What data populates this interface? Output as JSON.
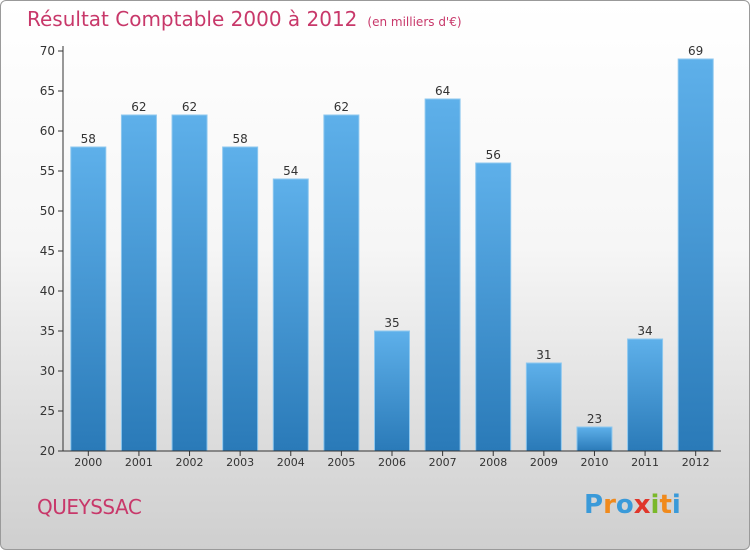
{
  "chart_data": {
    "type": "bar",
    "title": "Résultat Comptable 2000 à 2012",
    "subtitle": "(en milliers d'€)",
    "categories": [
      "2000",
      "2001",
      "2002",
      "2003",
      "2004",
      "2005",
      "2006",
      "2007",
      "2008",
      "2009",
      "2010",
      "2011",
      "2012"
    ],
    "values": [
      58,
      62,
      62,
      58,
      54,
      62,
      35,
      64,
      56,
      31,
      23,
      34,
      69
    ],
    "ylim": [
      20,
      70
    ],
    "yticks": [
      20,
      25,
      30,
      35,
      40,
      45,
      50,
      55,
      60,
      65,
      70
    ],
    "xlabel": "",
    "ylabel": "",
    "grid": false,
    "bar_color_light": "#5eb0ea",
    "bar_color_dark": "#2a7ab8"
  },
  "location": {
    "name": "QUEYSSAC"
  },
  "brand": {
    "letters": [
      "P",
      "r",
      "o",
      "x",
      "i",
      "t",
      "i"
    ],
    "colors": [
      "#3a9ad9",
      "#f08a1c",
      "#3a9ad9",
      "#e0362b",
      "#7ab82a",
      "#f08a1c",
      "#3a9ad9"
    ]
  },
  "colors": {
    "title": "#c8386a",
    "axis": "#333333"
  }
}
